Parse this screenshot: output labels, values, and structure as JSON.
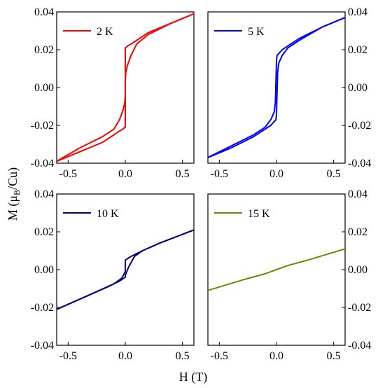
{
  "figure": {
    "ylabel_main": "M (μ",
    "ylabel_sub": "B",
    "ylabel_tail": "/Cu)",
    "xlabel": "H (T)"
  },
  "chart_data": [
    {
      "type": "line",
      "panel": "top-left",
      "legend": "2 K",
      "legend_position": "top-left",
      "color": "#ff0000",
      "xlim": [
        -0.6,
        0.6
      ],
      "ylim": [
        -0.04,
        0.04
      ],
      "x_ticks": [
        "-0.5",
        "0.0",
        "0.5"
      ],
      "y_ticks": [
        "-0.04",
        "-0.02",
        "0.00",
        "0.02",
        "0.04"
      ],
      "y_axis_side": "left",
      "series": [
        {
          "x": [
            -0.6,
            -0.4,
            -0.2,
            -0.1,
            -0.05,
            -0.02,
            -0.005,
            0.0,
            0.0,
            0.005,
            0.02,
            0.05,
            0.1,
            0.2,
            0.4,
            0.6
          ],
          "y": [
            -0.039,
            -0.032,
            -0.026,
            -0.022,
            -0.017,
            -0.012,
            -0.008,
            -0.004,
            0.021,
            0.021,
            0.022,
            0.023,
            0.025,
            0.029,
            0.034,
            0.039
          ]
        },
        {
          "x": [
            0.6,
            0.4,
            0.2,
            0.1,
            0.05,
            0.02,
            0.005,
            0.0,
            0.0,
            -0.005,
            -0.02,
            -0.05,
            -0.1,
            -0.2,
            -0.4,
            -0.6
          ],
          "y": [
            0.039,
            0.034,
            0.028,
            0.023,
            0.017,
            0.012,
            0.008,
            0.004,
            -0.021,
            -0.021,
            -0.022,
            -0.023,
            -0.025,
            -0.029,
            -0.034,
            -0.039
          ]
        }
      ]
    },
    {
      "type": "line",
      "panel": "top-right",
      "legend": "5 K",
      "legend_position": "top-left",
      "color": "#0000ff",
      "xlim": [
        -0.6,
        0.6
      ],
      "ylim": [
        -0.04,
        0.04
      ],
      "x_ticks": [
        "-0.5",
        "0.0",
        "0.5"
      ],
      "y_ticks": [
        "-0.04",
        "-0.02",
        "0.00",
        "0.02",
        "0.04"
      ],
      "y_axis_side": "right",
      "series": [
        {
          "x": [
            -0.6,
            -0.4,
            -0.2,
            -0.1,
            -0.05,
            -0.02,
            -0.01,
            0.0,
            0.005,
            0.02,
            0.05,
            0.1,
            0.2,
            0.4,
            0.6
          ],
          "y": [
            -0.037,
            -0.031,
            -0.025,
            -0.021,
            -0.017,
            -0.013,
            -0.008,
            0.014,
            0.017,
            0.018,
            0.02,
            0.022,
            0.026,
            0.032,
            0.037
          ]
        },
        {
          "x": [
            0.6,
            0.4,
            0.2,
            0.1,
            0.05,
            0.02,
            0.01,
            0.0,
            -0.005,
            -0.02,
            -0.05,
            -0.1,
            -0.2,
            -0.4,
            -0.6
          ],
          "y": [
            0.037,
            0.032,
            0.025,
            0.021,
            0.017,
            0.013,
            0.008,
            -0.014,
            -0.017,
            -0.018,
            -0.02,
            -0.022,
            -0.026,
            -0.032,
            -0.037
          ]
        }
      ]
    },
    {
      "type": "line",
      "panel": "bottom-left",
      "legend": "10 K",
      "legend_position": "top-left",
      "color": "#000080",
      "xlim": [
        -0.6,
        0.6
      ],
      "ylim": [
        -0.04,
        0.04
      ],
      "x_ticks": [
        "-0.5",
        "0.0",
        "0.5"
      ],
      "y_ticks": [
        "-0.04",
        "-0.02",
        "0.00",
        "0.02",
        "0.04"
      ],
      "y_axis_side": "left",
      "series": [
        {
          "x": [
            -0.6,
            -0.3,
            -0.1,
            -0.03,
            0.0,
            0.0,
            0.05,
            0.15,
            0.3,
            0.6
          ],
          "y": [
            -0.021,
            -0.013,
            -0.0075,
            -0.0045,
            -0.001,
            0.005,
            0.007,
            0.01,
            0.014,
            0.021
          ]
        },
        {
          "x": [
            0.6,
            0.3,
            0.15,
            0.08,
            0.03,
            0.0,
            0.0,
            -0.05,
            -0.15,
            -0.3,
            -0.6
          ],
          "y": [
            0.021,
            0.014,
            0.01,
            0.007,
            0.0015,
            -0.003,
            -0.004,
            -0.006,
            -0.009,
            -0.013,
            -0.021
          ]
        }
      ]
    },
    {
      "type": "line",
      "panel": "bottom-right",
      "legend": "15 K",
      "legend_position": "top-left",
      "color": "#808000",
      "xlim": [
        -0.6,
        0.6
      ],
      "ylim": [
        -0.04,
        0.04
      ],
      "x_ticks": [
        "-0.5",
        "0.0",
        "0.5"
      ],
      "y_ticks": [
        "-0.04",
        "-0.02",
        "0.00",
        "0.02",
        "0.04"
      ],
      "y_axis_side": "right",
      "series": [
        {
          "x": [
            -0.6,
            -0.3,
            -0.1,
            0.0,
            0.1,
            0.3,
            0.6
          ],
          "y": [
            -0.011,
            -0.0055,
            -0.0022,
            0.0,
            0.0022,
            0.0055,
            0.011
          ]
        }
      ]
    }
  ]
}
